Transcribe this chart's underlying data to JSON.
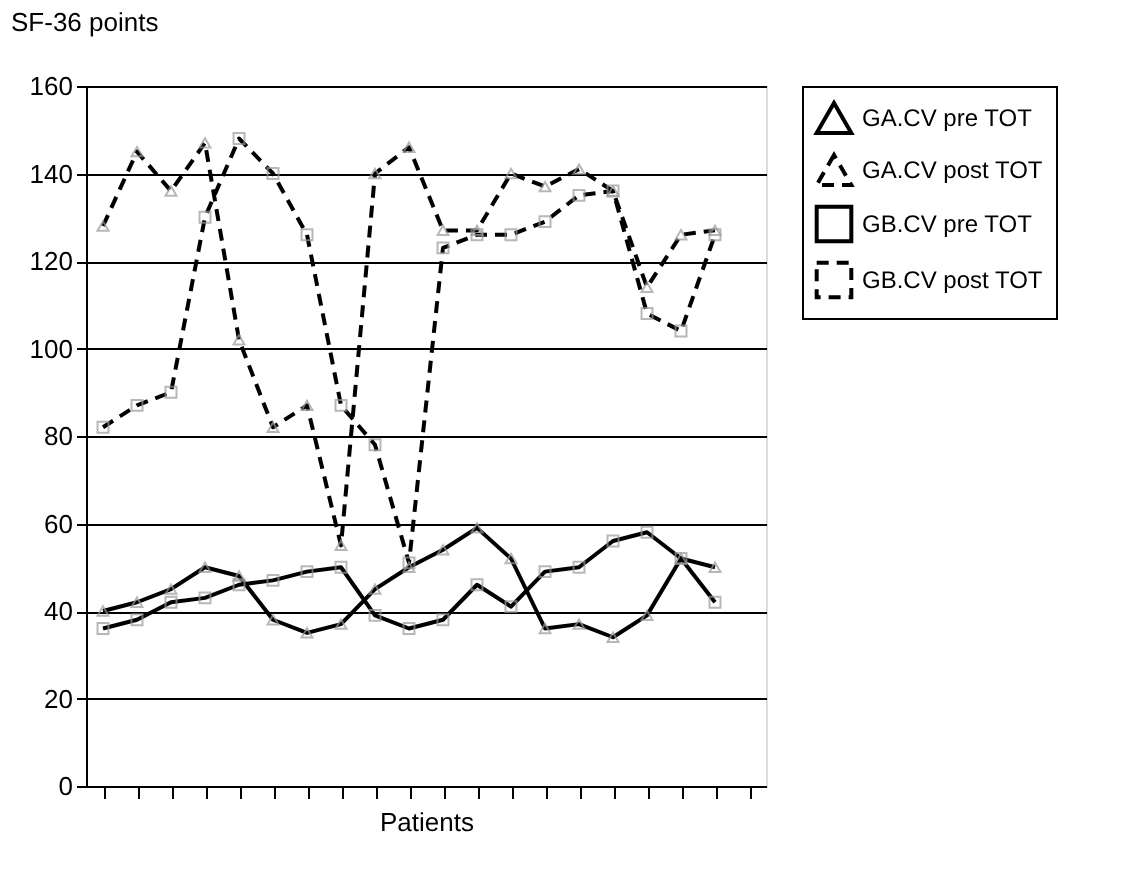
{
  "chart_data": {
    "type": "line",
    "ylabel": "SF-36 points",
    "xlabel": "Patients",
    "categories": [
      null,
      null,
      null,
      null,
      null,
      null,
      null,
      null,
      null,
      null,
      null,
      null,
      null,
      null,
      null,
      null,
      null,
      null,
      null,
      null
    ],
    "ylim": [
      0,
      160
    ],
    "yticks": [
      0,
      20,
      40,
      60,
      80,
      100,
      120,
      140,
      160
    ],
    "grid": "y",
    "legend": "right",
    "series": [
      {
        "name": "GA.CV pre TOT",
        "color": "#000000",
        "line_style": "solid",
        "marker": "triangle",
        "values": [
          40,
          42,
          45,
          50,
          48,
          38,
          35,
          37,
          45,
          50,
          54,
          59,
          52,
          36,
          37,
          34,
          39,
          52,
          50,
          null
        ]
      },
      {
        "name": "GA.CV post TOT",
        "color": "#000000",
        "line_style": "dashed",
        "marker": "triangle",
        "values": [
          128,
          145,
          136,
          147,
          102,
          82,
          87,
          55,
          140,
          146,
          127,
          127,
          140,
          137,
          141,
          136,
          114,
          126,
          127,
          null
        ]
      },
      {
        "name": "GB.CV pre TOT",
        "color": "#000000",
        "line_style": "solid",
        "marker": "square",
        "values": [
          36,
          38,
          42,
          43,
          46,
          47,
          49,
          50,
          39,
          36,
          38,
          46,
          41,
          49,
          50,
          56,
          58,
          52,
          42,
          null
        ]
      },
      {
        "name": "GB.CV post TOT",
        "color": "#000000",
        "line_style": "dashed",
        "marker": "square",
        "values": [
          82,
          87,
          90,
          130,
          148,
          140,
          126,
          87,
          78,
          51,
          123,
          126,
          126,
          129,
          135,
          136,
          108,
          104,
          126,
          null
        ]
      }
    ]
  }
}
